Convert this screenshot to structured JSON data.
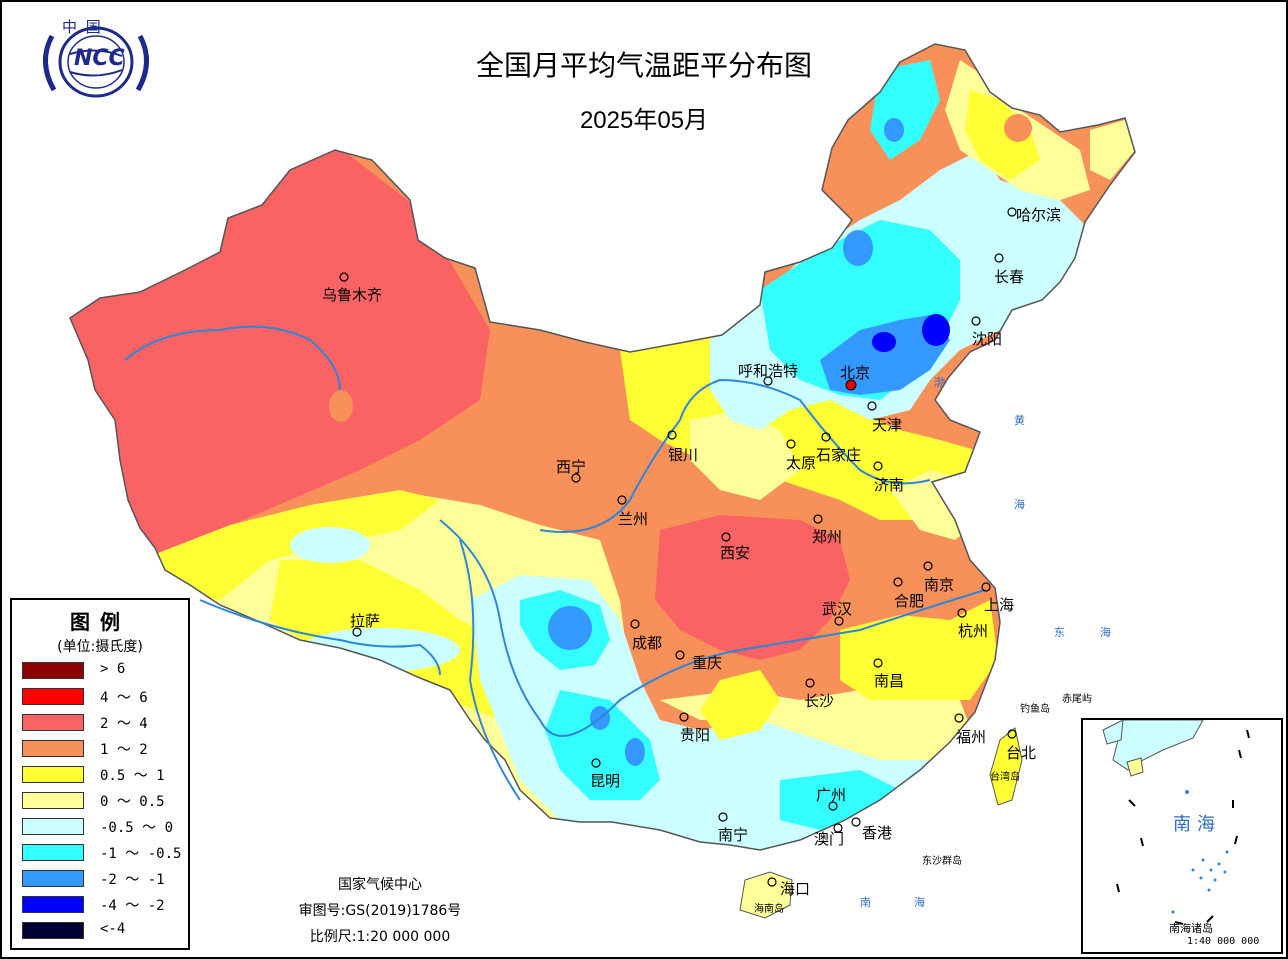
{
  "map": {
    "title": "全国月平均气温距平分布图",
    "subtitle": "2025年05月",
    "logo_text": "中 国",
    "logo_mark": "NCC"
  },
  "legend": {
    "title": "图例",
    "unit": "(单位:摄氏度)",
    "items": [
      {
        "label": "> 6",
        "color": "#8b0000"
      },
      {
        "label": "4 ～ 6",
        "color": "#ff0000"
      },
      {
        "label": "2 ～ 4",
        "color": "#f96363"
      },
      {
        "label": "1 ～ 2",
        "color": "#f8905a"
      },
      {
        "label": "0.5 ～ 1",
        "color": "#ffff33"
      },
      {
        "label": "0 ～ 0.5",
        "color": "#ffff99"
      },
      {
        "label": "-0.5 ～ 0",
        "color": "#ccffff"
      },
      {
        "label": "-1 ～ -0.5",
        "color": "#33ffff"
      },
      {
        "label": "-2 ～ -1",
        "color": "#3399ff"
      },
      {
        "label": "-4 ～ -2",
        "color": "#0000ff"
      },
      {
        "label": "<-4",
        "color": "#000033"
      }
    ]
  },
  "cities": [
    {
      "name": "哈尔滨"
    },
    {
      "name": "长春"
    },
    {
      "name": "沈阳"
    },
    {
      "name": "呼和浩特"
    },
    {
      "name": "北京"
    },
    {
      "name": "天津"
    },
    {
      "name": "乌鲁木齐"
    },
    {
      "name": "银川"
    },
    {
      "name": "西宁"
    },
    {
      "name": "兰州"
    },
    {
      "name": "太原"
    },
    {
      "name": "石家庄"
    },
    {
      "name": "济南"
    },
    {
      "name": "郑州"
    },
    {
      "name": "西安"
    },
    {
      "name": "南京"
    },
    {
      "name": "合肥"
    },
    {
      "name": "上海"
    },
    {
      "name": "杭州"
    },
    {
      "name": "武汉"
    },
    {
      "name": "拉萨"
    },
    {
      "name": "成都"
    },
    {
      "name": "重庆"
    },
    {
      "name": "长沙"
    },
    {
      "name": "南昌"
    },
    {
      "name": "福州"
    },
    {
      "name": "台北"
    },
    {
      "name": "贵阳"
    },
    {
      "name": "昆明"
    },
    {
      "name": "广州"
    },
    {
      "name": "南宁"
    },
    {
      "name": "澳门"
    },
    {
      "name": "香港"
    },
    {
      "name": "海口"
    }
  ],
  "seas": {
    "bohai": "渤",
    "huang1": "黄",
    "huang2": "海",
    "dong1": "东",
    "dong2": "海",
    "nan1": "南",
    "nan2": "海",
    "diaoyu": "钓鱼岛",
    "chiwei": "赤尾屿",
    "taiwan": "台湾岛",
    "dongsha": "东沙群岛",
    "hainan": "海南岛"
  },
  "credits": {
    "org": "国家气候中心",
    "review": "审图号:GS(2019)1786号",
    "scale": "比例尺:1:20 000 000"
  },
  "inset": {
    "sea": "南海",
    "label": "南海诸岛",
    "scale": "1:40 000 000"
  }
}
